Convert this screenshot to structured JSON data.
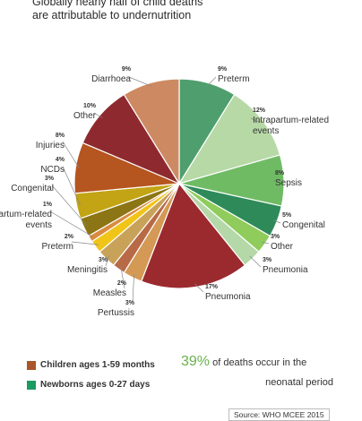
{
  "title_lines": [
    "Globally nearly half of child deaths",
    "are attributable to undernutrition"
  ],
  "chart_data": {
    "type": "pie",
    "title": "Globally nearly half of child deaths are attributable to undernutrition",
    "unit": "%",
    "series": [
      {
        "name": "Newborns ages 0-27 days",
        "color": "#1a9b62"
      },
      {
        "name": "Children ages 1-59 months",
        "color": "#a8562a"
      }
    ],
    "slices": [
      {
        "label": "Preterm",
        "value": 9,
        "pct": "9%",
        "color": "#4e9f6d",
        "group": "Newborns ages 0-27 days"
      },
      {
        "label": "Intrapartum-related events",
        "value": 12,
        "pct": "12%",
        "color": "#b7d9a6",
        "group": "Newborns ages 0-27 days"
      },
      {
        "label": "Sepsis",
        "value": 8,
        "pct": "8%",
        "color": "#6fbb64",
        "group": "Newborns ages 0-27 days"
      },
      {
        "label": "Congenital",
        "value": 5,
        "pct": "5%",
        "color": "#2f8a5a",
        "group": "Newborns ages 0-27 days"
      },
      {
        "label": "Other",
        "value": 3,
        "pct": "3%",
        "color": "#8fcc5b",
        "group": "Newborns ages 0-27 days"
      },
      {
        "label": "Pneumonia",
        "value": 3,
        "pct": "3%",
        "color": "#b5d8a9",
        "group": "Newborns ages 0-27 days"
      },
      {
        "label": "Pneumonia",
        "value": 17,
        "pct": "17%",
        "color": "#9b2a2f",
        "group": "Children ages 1-59 months"
      },
      {
        "label": "Pertussis",
        "value": 3,
        "pct": "3%",
        "color": "#d49955",
        "group": "Children ages 1-59 months"
      },
      {
        "label": "Measles",
        "value": 2,
        "pct": "2%",
        "color": "#b86a47",
        "group": "Children ages 1-59 months"
      },
      {
        "label": "Meningitis",
        "value": 3,
        "pct": "3%",
        "color": "#c9a25a",
        "group": "Children ages 1-59 months"
      },
      {
        "label": "Preterm",
        "value": 2,
        "pct": "2%",
        "color": "#f0c419",
        "group": "Children ages 1-59 months"
      },
      {
        "label": "Intrapartum-related events",
        "value": 1,
        "pct": "1%",
        "color": "#d98a3e",
        "group": "Children ages 1-59 months"
      },
      {
        "label": "Congenital",
        "value": 3,
        "pct": "3%",
        "color": "#8c7514",
        "group": "Children ages 1-59 months"
      },
      {
        "label": "NCDs",
        "value": 4,
        "pct": "4%",
        "color": "#c2a414",
        "group": "Children ages 1-59 months"
      },
      {
        "label": "Injuries",
        "value": 8,
        "pct": "8%",
        "color": "#b5551f",
        "group": "Children ages 1-59 months"
      },
      {
        "label": "Other",
        "value": 10,
        "pct": "10%",
        "color": "#8e2a2f",
        "group": "Children ages 1-59 months"
      },
      {
        "label": "Diarrhoea",
        "value": 9,
        "pct": "9%",
        "color": "#cd8a62",
        "group": "Children ages 1-59 months"
      }
    ]
  },
  "legend": [
    {
      "label": "Children ages 1-59 months",
      "color": "#a8562a"
    },
    {
      "label": "Newborns ages 0-27 days",
      "color": "#1a9b62"
    }
  ],
  "stat": {
    "value": "39%",
    "text1": "of deaths occur in the",
    "text2": "neonatal period",
    "color": "#6ab04c"
  },
  "source": "Source: WHO MCEE 2015"
}
